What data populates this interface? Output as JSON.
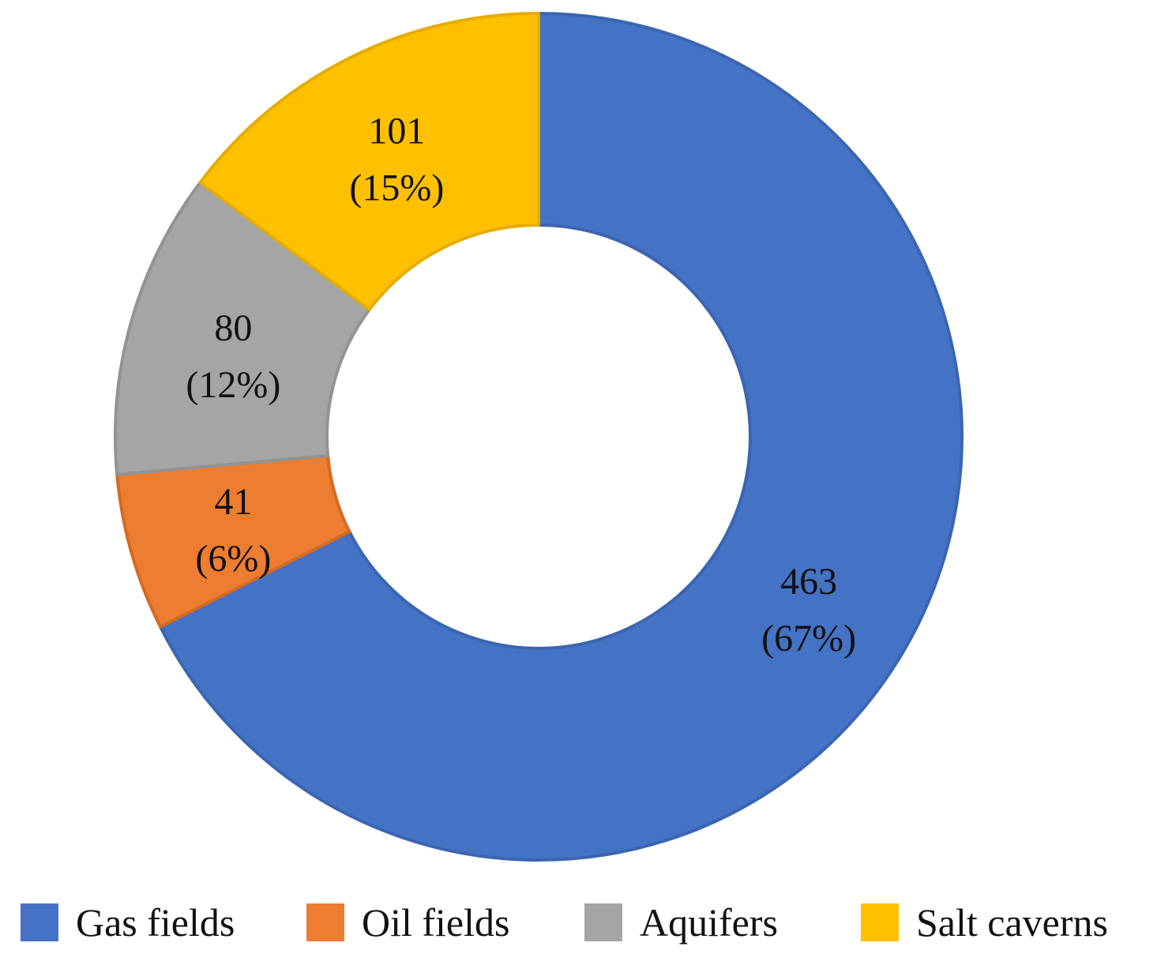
{
  "chart_data": {
    "type": "pie",
    "donut": true,
    "legend_position": "bottom",
    "series": [
      {
        "name": "Gas fields",
        "value": 463,
        "value_label": "463",
        "percent_label": "(67%)",
        "color": "#4472C4",
        "edge_color": "#3B65B0"
      },
      {
        "name": "Oil fields",
        "value": 41,
        "value_label": "41",
        "percent_label": "(6%)",
        "color": "#ED7D31",
        "edge_color": "#D56A20"
      },
      {
        "name": "Aquifers",
        "value": 80,
        "value_label": "80",
        "percent_label": "(12%)",
        "color": "#A5A5A5",
        "edge_color": "#939393"
      },
      {
        "name": "Salt caverns",
        "value": 101,
        "value_label": "101",
        "percent_label": "(15%)",
        "color": "#FFC000",
        "edge_color": "#E6AC00"
      }
    ]
  }
}
